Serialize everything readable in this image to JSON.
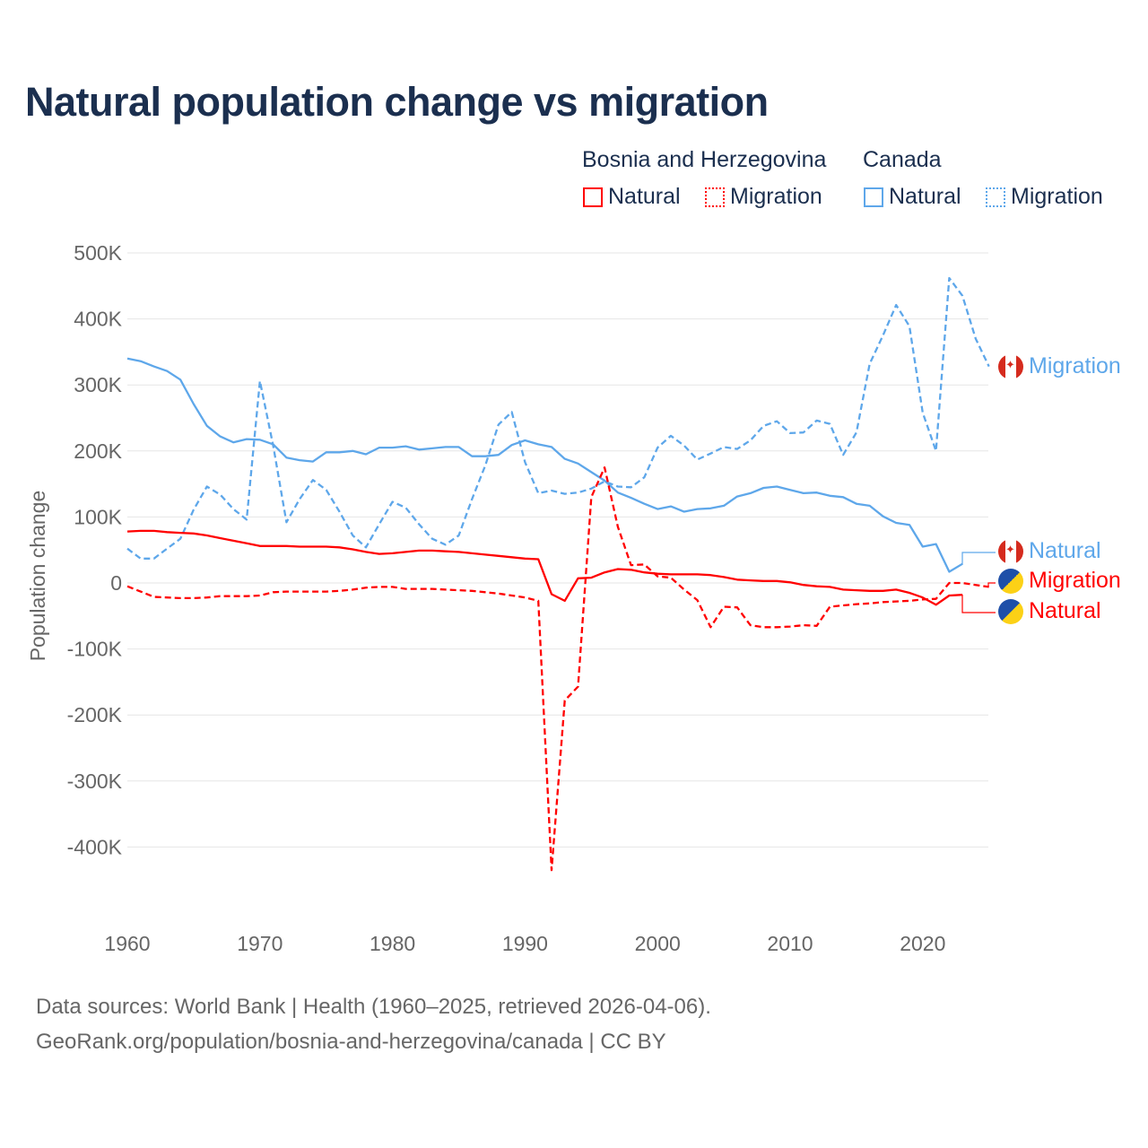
{
  "title": "Natural population change vs migration",
  "legend": {
    "groups": [
      "Bosnia and Herzegovina",
      "Canada"
    ],
    "items": [
      "Natural",
      "Migration",
      "Natural",
      "Migration"
    ]
  },
  "end_labels": {
    "ca_migration": "Migration",
    "ca_natural": "Natural",
    "ba_migration": "Migration",
    "ba_natural": "Natural"
  },
  "footer": {
    "line1": "Data sources: World Bank | Health (1960–2025, retrieved 2026-04-06).",
    "line2": "GeoRank.org/population/bosnia-and-herzegovina/canada | CC BY"
  },
  "colors": {
    "bosnia": "#ff0000",
    "canada": "#5ea7ea"
  },
  "chart_data": {
    "type": "line",
    "title": "Natural population change vs migration",
    "xlabel": "",
    "ylabel": "Population change",
    "xlim": [
      1960,
      2025
    ],
    "ylim": [
      -500,
      500
    ],
    "x_ticks": [
      "1960",
      "1970",
      "1980",
      "1990",
      "2000",
      "2010",
      "2020"
    ],
    "y_ticks": [
      "500K",
      "400K",
      "300K",
      "200K",
      "100K",
      "0",
      "-100K",
      "-200K",
      "-300K",
      "-400K"
    ],
    "y_tick_values": [
      500,
      400,
      300,
      200,
      100,
      0,
      -100,
      -200,
      -300,
      -400
    ],
    "units": "thousands",
    "grid": true,
    "legend_placement": "top-right",
    "series": [
      {
        "name": "Canada Migration",
        "country": "canada",
        "style": "dashed",
        "start": 1960,
        "values": [
          52,
          37,
          37,
          52,
          67,
          111,
          146,
          134,
          112,
          96,
          306,
          208,
          92,
          127,
          156,
          141,
          108,
          72,
          54,
          89,
          123,
          114,
          89,
          67,
          58,
          72,
          127,
          178,
          240,
          259,
          183,
          136,
          140,
          135,
          137,
          143,
          154,
          146,
          145,
          160,
          205,
          223,
          208,
          187,
          196,
          206,
          203,
          216,
          238,
          245,
          227,
          228,
          246,
          241,
          194,
          228,
          332,
          375,
          421,
          389,
          258,
          200,
          462,
          435,
          370,
          328
        ]
      },
      {
        "name": "Canada Natural",
        "country": "canada",
        "style": "solid",
        "start": 1960,
        "values": [
          340,
          336,
          328,
          321,
          308,
          271,
          238,
          222,
          213,
          218,
          217,
          210,
          190,
          186,
          184,
          198,
          198,
          200,
          195,
          205,
          205,
          207,
          202,
          204,
          206,
          206,
          192,
          192,
          194,
          209,
          216,
          210,
          206,
          188,
          181,
          168,
          155,
          137,
          129,
          120,
          112,
          116,
          108,
          112,
          113,
          117,
          131,
          136,
          144,
          146,
          141,
          136,
          137,
          132,
          130,
          120,
          117,
          101,
          91,
          88,
          55,
          59,
          17,
          29
        ]
      },
      {
        "name": "Bosnia and Herzegovina Migration",
        "country": "bosnia",
        "style": "dashed",
        "start": 1960,
        "values": [
          -5,
          -13,
          -21,
          -22,
          -23,
          -23,
          -22,
          -20,
          -20,
          -20,
          -19,
          -14,
          -13,
          -13,
          -13,
          -13,
          -12,
          -10,
          -7,
          -6,
          -6,
          -9,
          -9,
          -9,
          -10,
          -11,
          -12,
          -14,
          -16,
          -19,
          -22,
          -27,
          -435,
          -178,
          -157,
          130,
          175,
          85,
          27,
          28,
          10,
          8,
          -10,
          -26,
          -67,
          -36,
          -37,
          -64,
          -67,
          -67,
          -66,
          -64,
          -65,
          -36,
          -34,
          -32,
          -31,
          -29,
          -28,
          -27,
          -25,
          -24,
          0,
          0,
          -3,
          -6
        ]
      },
      {
        "name": "Bosnia and Herzegovina Natural",
        "country": "bosnia",
        "style": "solid",
        "start": 1960,
        "values": [
          78,
          79,
          79,
          77,
          76,
          75,
          72,
          68,
          64,
          60,
          56,
          56,
          56,
          55,
          55,
          55,
          54,
          51,
          47,
          44,
          45,
          47,
          49,
          49,
          48,
          47,
          45,
          43,
          41,
          39,
          37,
          36,
          -17,
          -27,
          7,
          8,
          16,
          21,
          20,
          16,
          14,
          13,
          13,
          13,
          12,
          9,
          5,
          4,
          3,
          3,
          1,
          -3,
          -5,
          -6,
          -10,
          -11,
          -12,
          -12,
          -10,
          -15,
          -22,
          -33,
          -19,
          -18
        ]
      }
    ]
  }
}
